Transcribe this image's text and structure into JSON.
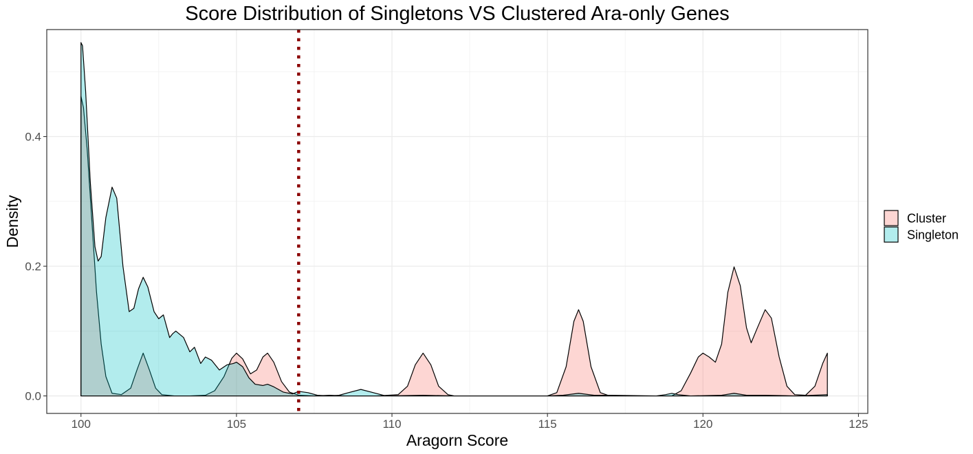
{
  "chart_data": {
    "type": "area",
    "title": "Score Distribution of Singletons VS Clustered Ara-only Genes",
    "xlabel": "Aragorn Score",
    "ylabel": "Density",
    "xlim": [
      98.9,
      125.3
    ],
    "ylim": [
      -0.027,
      0.565
    ],
    "x_ticks": [
      100,
      105,
      110,
      115,
      120,
      125
    ],
    "x_tick_labels": [
      "100",
      "105",
      "110",
      "115",
      "120",
      "125"
    ],
    "y_ticks": [
      0.0,
      0.2,
      0.4
    ],
    "y_tick_labels": [
      "0.0",
      "0.2",
      "0.4"
    ],
    "grid": true,
    "legend_position": "right",
    "reference_line": {
      "x": 107,
      "style": "dotted",
      "color": "#8b0000"
    },
    "series": [
      {
        "name": "Cluster",
        "fill": "#f8766d",
        "stroke": "#000000",
        "points": [
          [
            100.0,
            0.462
          ],
          [
            100.08,
            0.445
          ],
          [
            100.2,
            0.38
          ],
          [
            100.35,
            0.27
          ],
          [
            100.5,
            0.16
          ],
          [
            100.65,
            0.08
          ],
          [
            100.8,
            0.03
          ],
          [
            101.0,
            0.004
          ],
          [
            101.3,
            0.002
          ],
          [
            101.6,
            0.012
          ],
          [
            101.8,
            0.04
          ],
          [
            102.0,
            0.066
          ],
          [
            102.2,
            0.04
          ],
          [
            102.4,
            0.012
          ],
          [
            102.6,
            0.002
          ],
          [
            103.0,
            0.0
          ],
          [
            103.5,
            0.0
          ],
          [
            104.0,
            0.001
          ],
          [
            104.3,
            0.008
          ],
          [
            104.6,
            0.03
          ],
          [
            104.85,
            0.058
          ],
          [
            105.0,
            0.066
          ],
          [
            105.2,
            0.057
          ],
          [
            105.45,
            0.034
          ],
          [
            105.65,
            0.04
          ],
          [
            105.85,
            0.06
          ],
          [
            106.0,
            0.066
          ],
          [
            106.2,
            0.052
          ],
          [
            106.45,
            0.022
          ],
          [
            106.7,
            0.006
          ],
          [
            107.0,
            0.001
          ],
          [
            107.5,
            0.0
          ],
          [
            108.0,
            0.001
          ],
          [
            108.5,
            0.0
          ],
          [
            109.5,
            0.0
          ],
          [
            110.2,
            0.002
          ],
          [
            110.5,
            0.015
          ],
          [
            110.75,
            0.048
          ],
          [
            111.0,
            0.066
          ],
          [
            111.25,
            0.048
          ],
          [
            111.5,
            0.015
          ],
          [
            111.8,
            0.002
          ],
          [
            112.0,
            0.0
          ],
          [
            114.0,
            0.0
          ],
          [
            115.0,
            0.0
          ],
          [
            115.3,
            0.005
          ],
          [
            115.6,
            0.045
          ],
          [
            115.85,
            0.115
          ],
          [
            116.0,
            0.133
          ],
          [
            116.15,
            0.115
          ],
          [
            116.4,
            0.045
          ],
          [
            116.7,
            0.005
          ],
          [
            117.0,
            0.0
          ],
          [
            118.0,
            0.0
          ],
          [
            119.0,
            0.0
          ],
          [
            119.3,
            0.008
          ],
          [
            119.6,
            0.035
          ],
          [
            119.85,
            0.06
          ],
          [
            120.0,
            0.066
          ],
          [
            120.2,
            0.06
          ],
          [
            120.4,
            0.052
          ],
          [
            120.6,
            0.08
          ],
          [
            120.8,
            0.16
          ],
          [
            121.0,
            0.199
          ],
          [
            121.2,
            0.17
          ],
          [
            121.4,
            0.105
          ],
          [
            121.55,
            0.082
          ],
          [
            121.75,
            0.105
          ],
          [
            122.0,
            0.133
          ],
          [
            122.2,
            0.12
          ],
          [
            122.45,
            0.06
          ],
          [
            122.7,
            0.015
          ],
          [
            122.95,
            0.002
          ],
          [
            123.3,
            0.001
          ],
          [
            123.6,
            0.015
          ],
          [
            123.85,
            0.05
          ],
          [
            124.0,
            0.066
          ],
          [
            124.0,
            0.0
          ]
        ]
      },
      {
        "name": "Singleton",
        "fill": "#00bfc4",
        "stroke": "#000000",
        "points": [
          [
            100.0,
            0.545
          ],
          [
            100.05,
            0.54
          ],
          [
            100.15,
            0.47
          ],
          [
            100.3,
            0.33
          ],
          [
            100.45,
            0.23
          ],
          [
            100.55,
            0.208
          ],
          [
            100.65,
            0.215
          ],
          [
            100.8,
            0.275
          ],
          [
            101.0,
            0.322
          ],
          [
            101.15,
            0.305
          ],
          [
            101.35,
            0.2
          ],
          [
            101.55,
            0.13
          ],
          [
            101.7,
            0.135
          ],
          [
            101.85,
            0.165
          ],
          [
            102.0,
            0.183
          ],
          [
            102.15,
            0.168
          ],
          [
            102.35,
            0.13
          ],
          [
            102.5,
            0.119
          ],
          [
            102.65,
            0.125
          ],
          [
            102.85,
            0.09
          ],
          [
            102.95,
            0.096
          ],
          [
            103.05,
            0.1
          ],
          [
            103.3,
            0.09
          ],
          [
            103.5,
            0.068
          ],
          [
            103.65,
            0.075
          ],
          [
            103.85,
            0.05
          ],
          [
            104.0,
            0.06
          ],
          [
            104.2,
            0.055
          ],
          [
            104.45,
            0.04
          ],
          [
            104.7,
            0.048
          ],
          [
            104.9,
            0.05
          ],
          [
            105.0,
            0.052
          ],
          [
            105.2,
            0.045
          ],
          [
            105.4,
            0.028
          ],
          [
            105.6,
            0.018
          ],
          [
            105.85,
            0.016
          ],
          [
            106.0,
            0.018
          ],
          [
            106.2,
            0.014
          ],
          [
            106.5,
            0.006
          ],
          [
            106.8,
            0.003
          ],
          [
            107.0,
            0.007
          ],
          [
            107.3,
            0.005
          ],
          [
            107.6,
            0.001
          ],
          [
            108.0,
            0.0
          ],
          [
            108.3,
            0.001
          ],
          [
            108.6,
            0.005
          ],
          [
            109.0,
            0.01
          ],
          [
            109.4,
            0.005
          ],
          [
            109.8,
            0.0
          ],
          [
            111.0,
            0.001
          ],
          [
            112.0,
            0.0
          ],
          [
            115.0,
            0.0
          ],
          [
            115.5,
            0.001
          ],
          [
            116.0,
            0.004
          ],
          [
            116.5,
            0.001
          ],
          [
            117.0,
            0.001
          ],
          [
            118.5,
            0.0
          ],
          [
            118.8,
            0.002
          ],
          [
            119.0,
            0.004
          ],
          [
            119.2,
            0.002
          ],
          [
            119.6,
            0.0
          ],
          [
            120.6,
            0.001
          ],
          [
            121.0,
            0.004
          ],
          [
            121.4,
            0.001
          ],
          [
            122.0,
            0.001
          ],
          [
            123.0,
            0.0
          ],
          [
            124.0,
            0.002
          ],
          [
            124.0,
            0.0
          ]
        ]
      }
    ]
  }
}
